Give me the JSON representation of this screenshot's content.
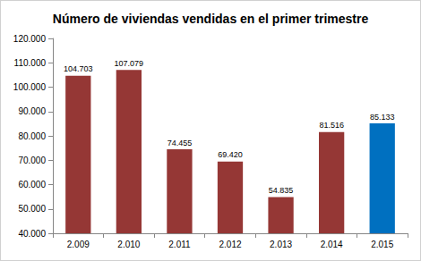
{
  "chart_data": {
    "type": "bar",
    "title": "Número de viviendas vendidas en el primer trimestre",
    "categories": [
      "2.009",
      "2.010",
      "2.011",
      "2.012",
      "2.013",
      "2.014",
      "2.015"
    ],
    "values": [
      104703,
      107079,
      74455,
      69420,
      54835,
      81516,
      85133
    ],
    "value_labels": [
      "104.703",
      "107.079",
      "74.455",
      "69.420",
      "54.835",
      "81.516",
      "85.133"
    ],
    "colors": [
      "#953735",
      "#953735",
      "#953735",
      "#953735",
      "#953735",
      "#953735",
      "#0070c0"
    ],
    "ylim": [
      40000,
      120000
    ],
    "yticks": [
      {
        "value": 40000,
        "label": "40.000"
      },
      {
        "value": 50000,
        "label": "50.000"
      },
      {
        "value": 60000,
        "label": "60.000"
      },
      {
        "value": 70000,
        "label": "70.000"
      },
      {
        "value": 80000,
        "label": "80.000"
      },
      {
        "value": 90000,
        "label": "90.000"
      },
      {
        "value": 100000,
        "label": "100.000"
      },
      {
        "value": 110000,
        "label": "110.000"
      },
      {
        "value": 120000,
        "label": "120.000"
      }
    ],
    "grid": false,
    "data_labels": true
  }
}
